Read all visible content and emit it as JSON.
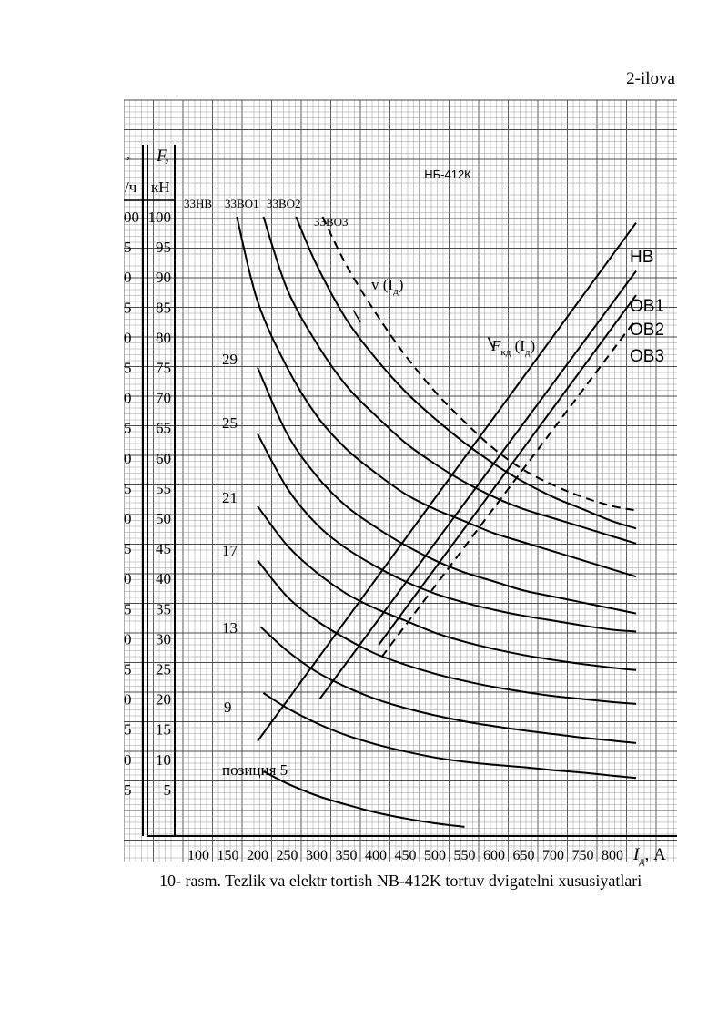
{
  "page_label": "2-ilova",
  "caption": "10- rasm. Tezlik va elektr tortish NB-412K tortuv dvigatelni xususiyatlari",
  "chart_data": {
    "type": "line",
    "title": "НБ-412К",
    "x_axis": {
      "label_main": "I",
      "label_sub": "д",
      "label_unit": ", А",
      "range": [
        60,
        870
      ],
      "ticks": [
        100,
        150,
        200,
        250,
        300,
        350,
        400,
        450,
        500,
        550,
        600,
        650,
        700,
        750,
        800
      ]
    },
    "y_axis_force": {
      "label_top": "F,",
      "label_unit": "кН",
      "range": [
        -7.5,
        110
      ],
      "ticks": [
        5,
        10,
        15,
        20,
        25,
        30,
        35,
        40,
        45,
        50,
        55,
        60,
        65,
        70,
        75,
        80,
        85,
        90,
        95,
        100
      ]
    },
    "y_axis_speed": {
      "label_top": ",",
      "label_unit": "/ч",
      "tick_labels": [
        "00",
        "5",
        "0",
        "5",
        "0",
        "5",
        "0",
        "5",
        "0",
        "5",
        "0",
        "5",
        "0",
        "5",
        "0",
        "5",
        "0",
        "5",
        "0",
        "5"
      ]
    },
    "grid": true,
    "colors": {
      "line": "#000000",
      "grid": "#9a9a9a",
      "grid_major": "#4a4a4a",
      "paper": "#ffffff"
    },
    "speed_curves": [
      {
        "label": "33НВ",
        "points": [
          [
            165,
            100
          ],
          [
            200,
            86
          ],
          [
            250,
            75
          ],
          [
            300,
            67
          ],
          [
            350,
            61.5
          ],
          [
            400,
            57.5
          ],
          [
            450,
            54
          ],
          [
            500,
            51.5
          ],
          [
            550,
            49.5
          ],
          [
            600,
            47.5
          ],
          [
            650,
            46
          ],
          [
            700,
            44.5
          ],
          [
            750,
            43
          ],
          [
            800,
            41.5
          ],
          [
            840,
            40.3
          ]
        ]
      },
      {
        "label": "33ВО1",
        "points": [
          [
            210,
            100
          ],
          [
            250,
            88
          ],
          [
            300,
            79
          ],
          [
            350,
            72
          ],
          [
            400,
            67
          ],
          [
            450,
            62.5
          ],
          [
            500,
            59
          ],
          [
            550,
            56
          ],
          [
            600,
            53.5
          ],
          [
            650,
            51.5
          ],
          [
            700,
            50
          ],
          [
            750,
            48.5
          ],
          [
            800,
            47
          ],
          [
            840,
            45.8
          ]
        ]
      },
      {
        "label": "33ВО2",
        "points": [
          [
            265,
            100
          ],
          [
            300,
            92
          ],
          [
            350,
            83
          ],
          [
            400,
            76.5
          ],
          [
            450,
            71
          ],
          [
            500,
            66.5
          ],
          [
            550,
            62.5
          ],
          [
            600,
            59
          ],
          [
            650,
            56
          ],
          [
            700,
            53.5
          ],
          [
            750,
            51.5
          ],
          [
            800,
            49.5
          ],
          [
            840,
            48.3
          ]
        ]
      },
      {
        "label": "33ВО3",
        "dashed": true,
        "points": [
          [
            310,
            100
          ],
          [
            350,
            92
          ],
          [
            400,
            84
          ],
          [
            450,
            77
          ],
          [
            500,
            71
          ],
          [
            550,
            66
          ],
          [
            600,
            61.5
          ],
          [
            650,
            58
          ],
          [
            700,
            55.5
          ],
          [
            750,
            53.5
          ],
          [
            800,
            52
          ],
          [
            840,
            51.3
          ]
        ]
      },
      {
        "label": "29",
        "points": [
          [
            200,
            75
          ],
          [
            250,
            64
          ],
          [
            300,
            57
          ],
          [
            350,
            52
          ],
          [
            400,
            48.5
          ],
          [
            450,
            45.5
          ],
          [
            500,
            43
          ],
          [
            550,
            41
          ],
          [
            600,
            39.5
          ],
          [
            650,
            38
          ],
          [
            700,
            37
          ],
          [
            750,
            36
          ],
          [
            800,
            35
          ],
          [
            840,
            34.2
          ]
        ]
      },
      {
        "label": "25",
        "points": [
          [
            200,
            64
          ],
          [
            250,
            55
          ],
          [
            300,
            49
          ],
          [
            350,
            45
          ],
          [
            400,
            42
          ],
          [
            450,
            39.5
          ],
          [
            500,
            37.5
          ],
          [
            550,
            36
          ],
          [
            600,
            34.8
          ],
          [
            650,
            33.8
          ],
          [
            700,
            33
          ],
          [
            750,
            32.2
          ],
          [
            800,
            31.5
          ],
          [
            840,
            31.2
          ]
        ]
      },
      {
        "label": "21",
        "points": [
          [
            200,
            52
          ],
          [
            250,
            45.5
          ],
          [
            300,
            41
          ],
          [
            350,
            37.5
          ],
          [
            400,
            35
          ],
          [
            450,
            33
          ],
          [
            500,
            31
          ],
          [
            550,
            29.5
          ],
          [
            600,
            28.3
          ],
          [
            650,
            27.3
          ],
          [
            700,
            26.5
          ],
          [
            750,
            25.8
          ],
          [
            800,
            25.2
          ],
          [
            840,
            24.8
          ]
        ]
      },
      {
        "label": "17",
        "points": [
          [
            200,
            43
          ],
          [
            250,
            37
          ],
          [
            300,
            33
          ],
          [
            350,
            30
          ],
          [
            400,
            27.5
          ],
          [
            450,
            25.7
          ],
          [
            500,
            24.2
          ],
          [
            550,
            23
          ],
          [
            600,
            22
          ],
          [
            650,
            21.2
          ],
          [
            700,
            20.5
          ],
          [
            750,
            20
          ],
          [
            800,
            19.5
          ],
          [
            840,
            19.2
          ]
        ]
      },
      {
        "label": "13",
        "points": [
          [
            205,
            32
          ],
          [
            250,
            28
          ],
          [
            300,
            24.5
          ],
          [
            350,
            22
          ],
          [
            400,
            20
          ],
          [
            450,
            18.5
          ],
          [
            500,
            17.3
          ],
          [
            550,
            16.3
          ],
          [
            600,
            15.5
          ],
          [
            650,
            14.8
          ],
          [
            700,
            14.2
          ],
          [
            750,
            13.6
          ],
          [
            800,
            13.1
          ],
          [
            840,
            12.7
          ]
        ]
      },
      {
        "label": "9",
        "points": [
          [
            210,
            21
          ],
          [
            250,
            18.5
          ],
          [
            300,
            16
          ],
          [
            350,
            14
          ],
          [
            400,
            12.5
          ],
          [
            450,
            11.3
          ],
          [
            500,
            10.3
          ],
          [
            550,
            9.6
          ],
          [
            600,
            9.1
          ],
          [
            650,
            8.7
          ],
          [
            700,
            8.2
          ],
          [
            750,
            7.8
          ],
          [
            800,
            7.3
          ],
          [
            840,
            6.9
          ]
        ]
      },
      {
        "label": "позиция 5",
        "points": [
          [
            210,
            8
          ],
          [
            250,
            6
          ],
          [
            300,
            4
          ],
          [
            350,
            2.5
          ],
          [
            400,
            1.2
          ],
          [
            450,
            0.2
          ],
          [
            500,
            -0.6
          ],
          [
            550,
            -1.2
          ]
        ]
      }
    ],
    "force_curves": [
      {
        "label": "НВ",
        "points": [
          [
            200,
            13
          ],
          [
            840,
            99
          ]
        ]
      },
      {
        "label": "ОВ1",
        "points": [
          [
            305,
            20
          ],
          [
            840,
            91
          ]
        ]
      },
      {
        "label": "ОВ2",
        "points": [
          [
            405,
            29
          ],
          [
            840,
            87
          ]
        ]
      },
      {
        "label": "ОВ3",
        "dashed": true,
        "points": [
          [
            410,
            27
          ],
          [
            840,
            83
          ]
        ]
      }
    ],
    "annotations": [
      {
        "text_main": "v (I",
        "text_sub": "д",
        "text_end": ")"
      },
      {
        "text_main": "F",
        "text_sub": "кд",
        "text_mid": " (I",
        "text_sub2": "д",
        "text_end": ")"
      }
    ]
  }
}
